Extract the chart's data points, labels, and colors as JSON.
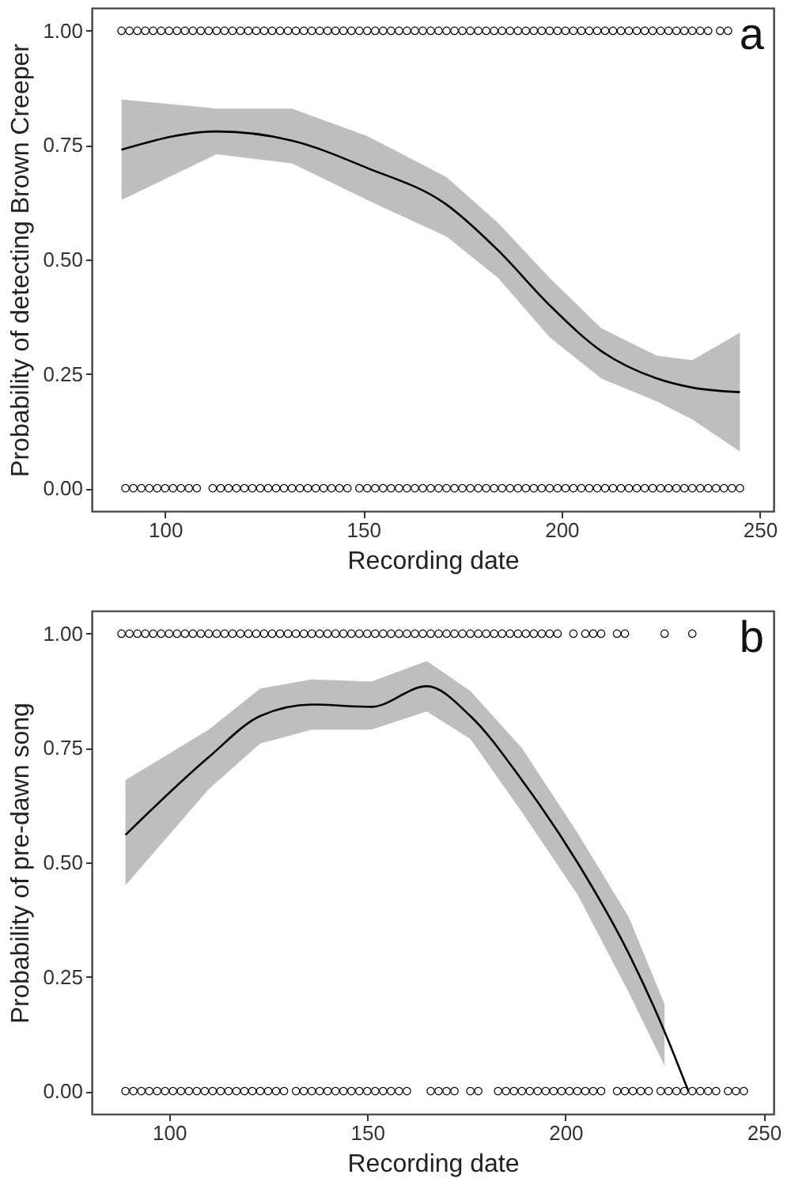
{
  "chart_data": [
    {
      "type": "scatter",
      "xlabel": "Recording date",
      "ylabel": "Probability of detecting Brown Creeper",
      "annotations": [
        "a"
      ],
      "xlim": [
        81.5,
        253.5
      ],
      "ylim": [
        -0.05,
        1.05
      ],
      "xticks": [
        100,
        150,
        200,
        250
      ],
      "yticks": [
        {
          "value": 0,
          "label": "0.00"
        },
        {
          "value": 0.25,
          "label": "0.25"
        },
        {
          "value": 0.5,
          "label": "0.50"
        },
        {
          "value": 0.75,
          "label": "0.75"
        },
        {
          "value": 1,
          "label": "1.00"
        }
      ],
      "series": [
        {
          "marker": "circle",
          "color": "#000000",
          "x": [
            89,
            91,
            93,
            95,
            97,
            99,
            101,
            103,
            105,
            107,
            109,
            111,
            113,
            115,
            117,
            119,
            121,
            123,
            125,
            127,
            129,
            131,
            133,
            135,
            137,
            139,
            141,
            143,
            145,
            147,
            149,
            151,
            153,
            155,
            157,
            159,
            161,
            163,
            165,
            167,
            169,
            171,
            173,
            175,
            177,
            179,
            181,
            183,
            185,
            187,
            189,
            191,
            193,
            195,
            197,
            199,
            201,
            203,
            205,
            207,
            209,
            211,
            213,
            215,
            217,
            219,
            221,
            223,
            225,
            227,
            229,
            231,
            233,
            235,
            237,
            240,
            242,
            90,
            92,
            94,
            96,
            98,
            100,
            102,
            104,
            106,
            108,
            112,
            114,
            116,
            118,
            120,
            122,
            124,
            126,
            128,
            130,
            132,
            134,
            136,
            138,
            140,
            142,
            144,
            146,
            149,
            151,
            153,
            155,
            157,
            159,
            161,
            163,
            165,
            167,
            169,
            171,
            173,
            175,
            177,
            179,
            181,
            183,
            185,
            187,
            189,
            191,
            193,
            195,
            197,
            199,
            201,
            203,
            205,
            207,
            209,
            211,
            213,
            215,
            217,
            219,
            221,
            223,
            225,
            227,
            229,
            231,
            233,
            235,
            237,
            239,
            241,
            243,
            245
          ],
          "values": [
            1,
            1,
            1,
            1,
            1,
            1,
            1,
            1,
            1,
            1,
            1,
            1,
            1,
            1,
            1,
            1,
            1,
            1,
            1,
            1,
            1,
            1,
            1,
            1,
            1,
            1,
            1,
            1,
            1,
            1,
            1,
            1,
            1,
            1,
            1,
            1,
            1,
            1,
            1,
            1,
            1,
            1,
            1,
            1,
            1,
            1,
            1,
            1,
            1,
            1,
            1,
            1,
            1,
            1,
            1,
            1,
            1,
            1,
            1,
            1,
            1,
            1,
            1,
            1,
            1,
            1,
            1,
            1,
            1,
            1,
            1,
            1,
            1,
            1,
            1,
            1,
            1,
            0,
            0,
            0,
            0,
            0,
            0,
            0,
            0,
            0,
            0,
            0,
            0,
            0,
            0,
            0,
            0,
            0,
            0,
            0,
            0,
            0,
            0,
            0,
            0,
            0,
            0,
            0,
            0,
            0,
            0,
            0,
            0,
            0,
            0,
            0,
            0,
            0,
            0,
            0,
            0,
            0,
            0,
            0,
            0,
            0,
            0,
            0,
            0,
            0,
            0,
            0,
            0,
            0,
            0,
            0,
            0,
            0,
            0,
            0,
            0,
            0,
            0,
            0,
            0,
            0,
            0,
            0,
            0,
            0,
            0,
            0,
            0,
            0,
            0,
            0,
            0,
            0
          ]
        },
        {
          "type": "line",
          "color": "#000000",
          "x": [
            89,
            113,
            132,
            151,
            171,
            184,
            197,
            210,
            224,
            233,
            245
          ],
          "values": [
            0.74,
            0.78,
            0.76,
            0.7,
            0.62,
            0.52,
            0.4,
            0.3,
            0.24,
            0.22,
            0.21
          ],
          "upper": [
            0.85,
            0.83,
            0.83,
            0.77,
            0.68,
            0.58,
            0.46,
            0.35,
            0.29,
            0.28,
            0.34
          ],
          "lower": [
            0.63,
            0.73,
            0.71,
            0.63,
            0.55,
            0.46,
            0.33,
            0.24,
            0.19,
            0.15,
            0.08
          ]
        }
      ]
    },
    {
      "type": "scatter",
      "xlabel": "Recording date",
      "ylabel": "Probability of pre-dawn song",
      "annotations": [
        "b"
      ],
      "xlim": [
        80.5,
        252.5
      ],
      "ylim": [
        -0.05,
        1.05
      ],
      "xticks": [
        100,
        150,
        200,
        250
      ],
      "yticks": [
        {
          "value": 0,
          "label": "0.00"
        },
        {
          "value": 0.25,
          "label": "0.25"
        },
        {
          "value": 0.5,
          "label": "0.50"
        },
        {
          "value": 0.75,
          "label": "0.75"
        },
        {
          "value": 1,
          "label": "1.00"
        }
      ],
      "series": [
        {
          "marker": "circle",
          "color": "#000000",
          "x": [
            88,
            90,
            92,
            94,
            96,
            98,
            100,
            102,
            104,
            106,
            108,
            110,
            112,
            114,
            116,
            118,
            120,
            122,
            124,
            126,
            128,
            130,
            132,
            134,
            136,
            138,
            140,
            142,
            144,
            146,
            148,
            150,
            152,
            154,
            156,
            158,
            160,
            162,
            164,
            166,
            168,
            170,
            172,
            174,
            176,
            178,
            180,
            182,
            184,
            186,
            188,
            190,
            192,
            194,
            196,
            198,
            202,
            205,
            207,
            209,
            213,
            215,
            225,
            232,
            89,
            91,
            93,
            95,
            97,
            99,
            101,
            103,
            105,
            107,
            109,
            111,
            113,
            115,
            117,
            119,
            121,
            123,
            125,
            127,
            129,
            132,
            134,
            136,
            138,
            140,
            142,
            144,
            146,
            148,
            150,
            152,
            154,
            156,
            158,
            160,
            166,
            168,
            170,
            172,
            176,
            178,
            183,
            185,
            187,
            189,
            191,
            193,
            195,
            197,
            199,
            201,
            203,
            205,
            207,
            209,
            213,
            215,
            217,
            219,
            221,
            224,
            226,
            228,
            230,
            232,
            234,
            236,
            238,
            241,
            243,
            245
          ],
          "values": [
            1,
            1,
            1,
            1,
            1,
            1,
            1,
            1,
            1,
            1,
            1,
            1,
            1,
            1,
            1,
            1,
            1,
            1,
            1,
            1,
            1,
            1,
            1,
            1,
            1,
            1,
            1,
            1,
            1,
            1,
            1,
            1,
            1,
            1,
            1,
            1,
            1,
            1,
            1,
            1,
            1,
            1,
            1,
            1,
            1,
            1,
            1,
            1,
            1,
            1,
            1,
            1,
            1,
            1,
            1,
            1,
            1,
            1,
            1,
            1,
            1,
            1,
            1,
            1,
            0,
            0,
            0,
            0,
            0,
            0,
            0,
            0,
            0,
            0,
            0,
            0,
            0,
            0,
            0,
            0,
            0,
            0,
            0,
            0,
            0,
            0,
            0,
            0,
            0,
            0,
            0,
            0,
            0,
            0,
            0,
            0,
            0,
            0,
            0,
            0,
            0,
            0,
            0,
            0,
            0,
            0,
            0,
            0,
            0,
            0,
            0,
            0,
            0,
            0,
            0,
            0,
            0,
            0,
            0,
            0,
            0,
            0,
            0,
            0,
            0,
            0,
            0,
            0,
            0,
            0,
            0,
            0,
            0,
            0,
            0,
            0
          ]
        },
        {
          "type": "line",
          "color": "#000000",
          "x": [
            89,
            110,
            123,
            136,
            151,
            165,
            176,
            189,
            203,
            216,
            225,
            231
          ],
          "values": [
            0.56,
            0.73,
            0.82,
            0.845,
            0.84,
            0.885,
            0.82,
            0.68,
            0.5,
            0.3,
            0.13,
            0
          ],
          "upper": [
            0.68,
            0.79,
            0.88,
            0.9,
            0.895,
            0.94,
            0.875,
            0.75,
            0.565,
            0.38,
            0.19,
            null
          ],
          "lower": [
            0.45,
            0.66,
            0.76,
            0.79,
            0.79,
            0.83,
            0.77,
            0.61,
            0.43,
            0.215,
            0.055,
            null
          ]
        }
      ]
    }
  ]
}
